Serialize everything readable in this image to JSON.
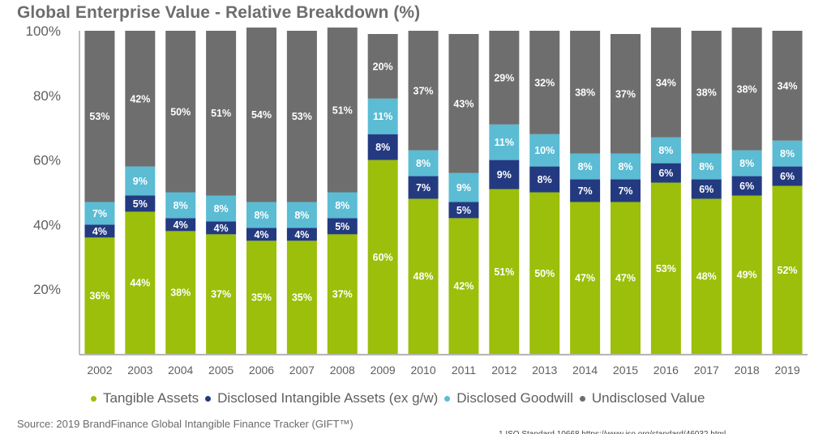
{
  "chart_data": {
    "type": "bar",
    "stacked": true,
    "title": "Global Enterprise Value - Relative Breakdown (%)",
    "xlabel": "",
    "ylabel": "",
    "ylim": [
      0,
      100
    ],
    "yticks": [
      20,
      40,
      60,
      80,
      100
    ],
    "ytick_labels": [
      "20%",
      "40%",
      "60%",
      "80%",
      "100%"
    ],
    "grid": false,
    "legend_position": "bottom",
    "categories": [
      "2002",
      "2003",
      "2004",
      "2005",
      "2006",
      "2007",
      "2008",
      "2009",
      "2010",
      "2011",
      "2012",
      "2013",
      "2014",
      "2015",
      "2016",
      "2017",
      "2018",
      "2019"
    ],
    "series": [
      {
        "name": "Tangible Assets",
        "color": "#9bbf0a",
        "values": [
          36,
          44,
          38,
          37,
          35,
          35,
          37,
          60,
          48,
          42,
          51,
          50,
          47,
          47,
          53,
          48,
          49,
          52
        ]
      },
      {
        "name": "Disclosed Intangible Assets (ex g/w)",
        "color": "#243a80",
        "values": [
          4,
          5,
          4,
          4,
          4,
          4,
          5,
          8,
          7,
          5,
          9,
          8,
          7,
          7,
          6,
          6,
          6,
          6
        ]
      },
      {
        "name": "Disclosed Goodwill",
        "color": "#5bbcd4",
        "values": [
          7,
          9,
          8,
          8,
          8,
          8,
          8,
          11,
          8,
          9,
          11,
          10,
          8,
          8,
          8,
          8,
          8,
          8
        ]
      },
      {
        "name": "Undisclosed Value",
        "color": "#6e6e6e",
        "values": [
          53,
          42,
          50,
          51,
          54,
          53,
          51,
          20,
          37,
          43,
          29,
          32,
          38,
          37,
          34,
          38,
          38,
          34
        ]
      }
    ],
    "label_suffix": "%"
  },
  "legend": [
    {
      "label": "Tangible Assets",
      "color": "#9bbf0a"
    },
    {
      "label": "Disclosed Intangible Assets (ex g/w)",
      "color": "#243a80"
    },
    {
      "label": "Disclosed Goodwill",
      "color": "#5bbcd4"
    },
    {
      "label": "Undisclosed Value",
      "color": "#6e6e6e"
    }
  ],
  "source": "Source: 2019 BrandFinance Global Intangible Finance Tracker (GIFT™)",
  "footnote": "1 ISO Standard 10668 https://www.iso.org/standard/46032.html"
}
